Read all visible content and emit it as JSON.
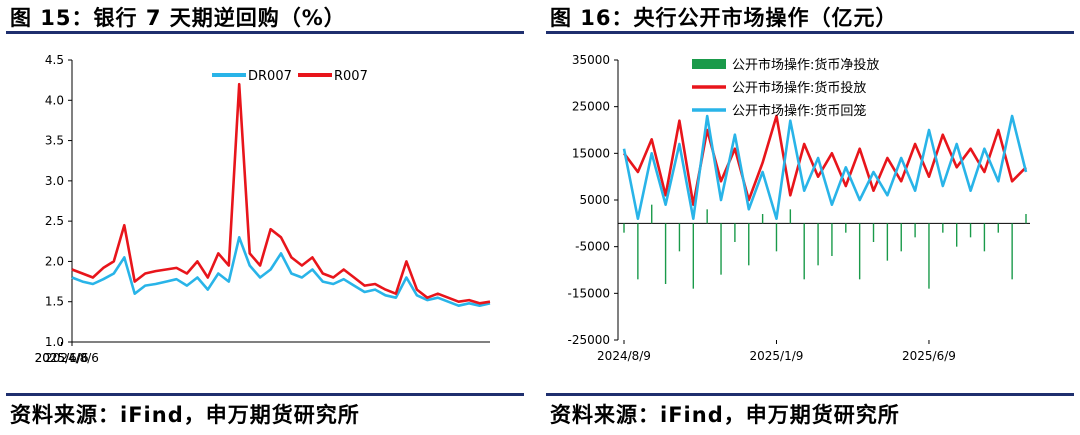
{
  "left": {
    "figure_title": "图 15：银行 7 天期逆回购（%）",
    "source": "资料来源：iFind，申万期货研究所"
  },
  "right": {
    "figure_title": "图 16：央行公开市场操作（亿元）",
    "source": "资料来源：iFind，申万期货研究所"
  },
  "colors": {
    "dr007": "#29b4e8",
    "r007": "#e8151b",
    "net": "#1a9a4a",
    "rule": "#1f2f6e"
  },
  "chart_data": [
    {
      "type": "line",
      "title": "",
      "xlabel": "",
      "ylabel": "",
      "ylim": [
        1.0,
        4.5
      ],
      "yticks": [
        "1.0",
        "1.5",
        "2.0",
        "2.5",
        "3.0",
        "3.5",
        "4.0",
        "4.5"
      ],
      "xticks": [
        "2024/8/6",
        "2025/1/6",
        "2025/6/6"
      ],
      "x": [
        "2024/8/6",
        "2024/8/16",
        "2024/8/26",
        "2024/9/5",
        "2024/9/15",
        "2024/9/25",
        "2024/10/5",
        "2024/10/15",
        "2024/10/25",
        "2024/11/4",
        "2024/11/14",
        "2024/11/24",
        "2024/12/4",
        "2024/12/14",
        "2024/12/24",
        "2025/1/3",
        "2025/1/13",
        "2025/1/23",
        "2025/2/2",
        "2025/2/12",
        "2025/2/22",
        "2025/3/4",
        "2025/3/14",
        "2025/3/24",
        "2025/4/3",
        "2025/4/13",
        "2025/4/23",
        "2025/5/3",
        "2025/5/13",
        "2025/5/23",
        "2025/6/2",
        "2025/6/12",
        "2025/6/22",
        "2025/7/2",
        "2025/7/12",
        "2025/7/22",
        "2025/8/1",
        "2025/8/11",
        "2025/8/21",
        "2025/8/31",
        "2025/9/10"
      ],
      "legend_position": "top-center",
      "series": [
        {
          "name": "DR007",
          "values": [
            1.8,
            1.75,
            1.72,
            1.78,
            1.85,
            2.05,
            1.6,
            1.7,
            1.72,
            1.75,
            1.78,
            1.7,
            1.8,
            1.65,
            1.85,
            1.75,
            2.3,
            1.95,
            1.8,
            1.9,
            2.1,
            1.85,
            1.8,
            1.9,
            1.75,
            1.72,
            1.78,
            1.7,
            1.62,
            1.65,
            1.58,
            1.55,
            1.8,
            1.58,
            1.52,
            1.55,
            1.5,
            1.45,
            1.48,
            1.45,
            1.48
          ]
        },
        {
          "name": "R007",
          "values": [
            1.9,
            1.85,
            1.8,
            1.92,
            2.0,
            2.45,
            1.75,
            1.85,
            1.88,
            1.9,
            1.92,
            1.85,
            2.0,
            1.8,
            2.1,
            1.95,
            4.2,
            2.1,
            1.95,
            2.4,
            2.3,
            2.05,
            1.95,
            2.05,
            1.85,
            1.8,
            1.9,
            1.8,
            1.7,
            1.72,
            1.65,
            1.6,
            2.0,
            1.65,
            1.55,
            1.6,
            1.55,
            1.5,
            1.52,
            1.48,
            1.5
          ]
        }
      ]
    },
    {
      "type": "bar",
      "title": "",
      "xlabel": "",
      "ylabel": "",
      "ylim": [
        -25000,
        35000
      ],
      "yticks": [
        "-25000",
        "-15000",
        "-5000",
        "5000",
        "15000",
        "25000",
        "35000"
      ],
      "xticks": [
        "2024/8/9",
        "2025/1/9",
        "2025/6/9"
      ],
      "legend_position": "top-left",
      "x": [
        "2024/8/9",
        "2024/8/23",
        "2024/9/6",
        "2024/9/20",
        "2024/10/4",
        "2024/10/18",
        "2024/11/1",
        "2024/11/15",
        "2024/11/29",
        "2024/12/13",
        "2024/12/27",
        "2025/1/9",
        "2025/1/23",
        "2025/2/6",
        "2025/2/20",
        "2025/3/6",
        "2025/3/20",
        "2025/4/3",
        "2025/4/17",
        "2025/5/1",
        "2025/5/15",
        "2025/5/29",
        "2025/6/9",
        "2025/6/23",
        "2025/7/7",
        "2025/7/21",
        "2025/8/4",
        "2025/8/18",
        "2025/9/1",
        "2025/9/15"
      ],
      "series": [
        {
          "name": "公开市场操作:货币净投放",
          "values": [
            -2000,
            -12000,
            4000,
            -13000,
            -6000,
            -14000,
            3000,
            -11000,
            -4000,
            -9000,
            2000,
            -6000,
            3000,
            -12000,
            -9000,
            -7000,
            -2000,
            -12000,
            -4000,
            -8000,
            -6000,
            -3000,
            -14000,
            -2000,
            -5000,
            -3000,
            -6000,
            -2000,
            -12000,
            2000
          ]
        },
        {
          "name": "公开市场操作:货币投放",
          "values": [
            15000,
            11000,
            18000,
            6000,
            22000,
            4000,
            20000,
            9000,
            16000,
            5000,
            13000,
            23000,
            6000,
            17000,
            10000,
            15000,
            8000,
            16000,
            7000,
            14000,
            9000,
            17000,
            10000,
            19000,
            12000,
            16000,
            11000,
            20000,
            9000,
            12000
          ]
        },
        {
          "name": "公开市场操作:货币回笼",
          "values": [
            16000,
            1000,
            15000,
            4000,
            17000,
            1000,
            23000,
            5000,
            19000,
            3000,
            11000,
            1000,
            22000,
            7000,
            14000,
            4000,
            12000,
            5000,
            11000,
            6000,
            14000,
            7000,
            20000,
            8000,
            17000,
            7000,
            16000,
            9000,
            23000,
            11000
          ]
        }
      ]
    }
  ]
}
